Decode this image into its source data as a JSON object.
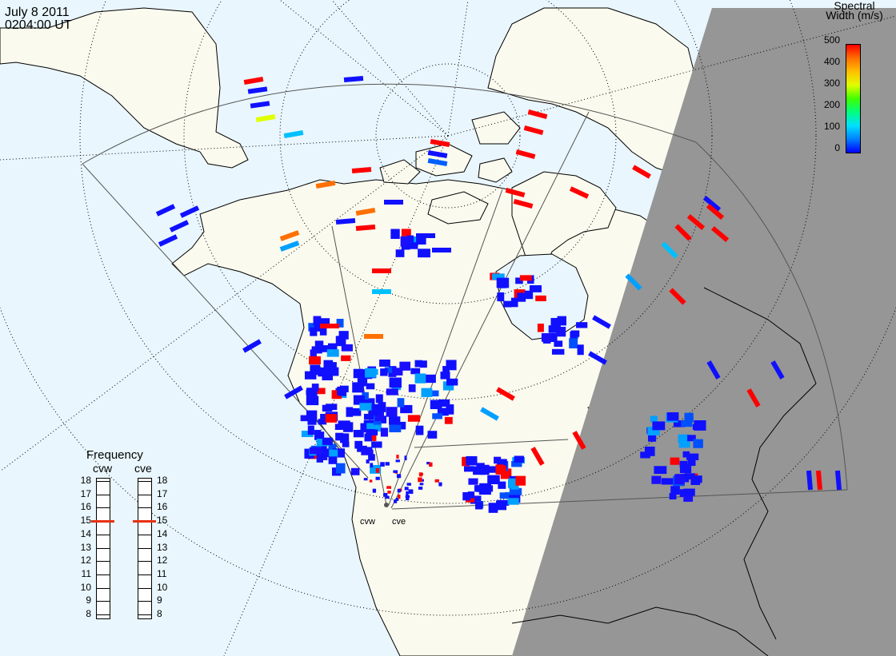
{
  "header": {
    "date": "July  8 2011",
    "time": "0204:00 UT"
  },
  "legend": {
    "title_line1": "Spectral",
    "title_line2": "Width (m/s)",
    "ticks": [
      "500",
      "400",
      "300",
      "200",
      "100",
      "0"
    ],
    "colors": [
      "#0000ff",
      "#0080ff",
      "#00e0ff",
      "#00ff80",
      "#40ff00",
      "#e0ff00",
      "#ffc000",
      "#ff7000",
      "#ff0000"
    ]
  },
  "frequency_panel": {
    "title": "Frequency",
    "radars": [
      {
        "code": "cvw",
        "value": 15
      },
      {
        "code": "cve",
        "value": 15
      }
    ],
    "scale": [
      "18",
      "17",
      "16",
      "15",
      "14",
      "13",
      "12",
      "11",
      "10",
      "9",
      "8"
    ]
  },
  "radar_sites": [
    {
      "label": "cvw"
    },
    {
      "label": "cve"
    }
  ],
  "map_colors": {
    "ocean": "#e9f6fd",
    "land": "#fbfaee",
    "night": "#969696",
    "coast": "#000000"
  }
}
